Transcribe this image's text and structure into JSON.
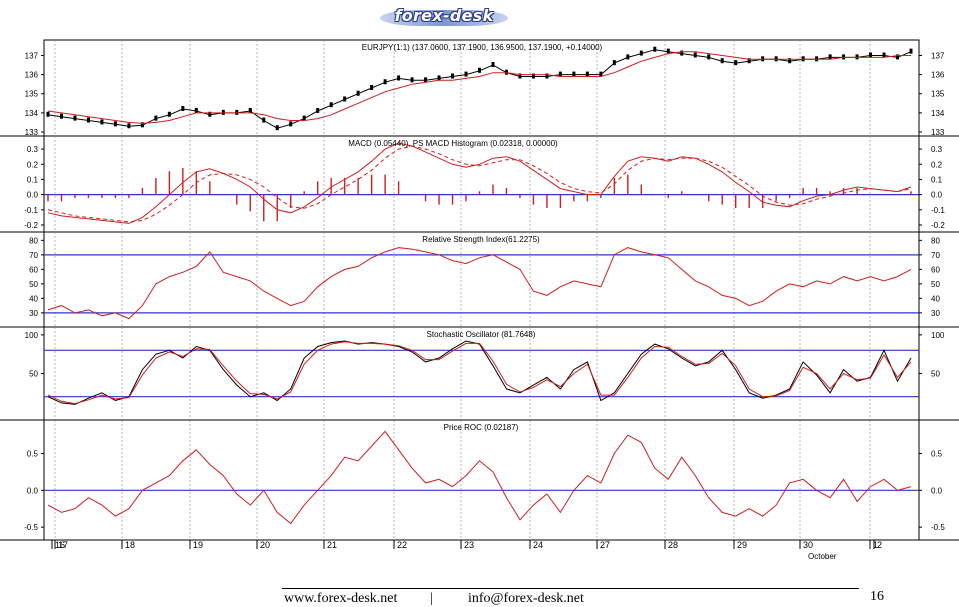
{
  "header": {
    "logo_text": "forex-desk"
  },
  "footer": {
    "website": "www.forex-desk.net",
    "separator": "|",
    "email": "info@forex-desk.net",
    "page_number": "16"
  },
  "colors": {
    "price": "#000000",
    "ma": "#cc1f1f",
    "indicator": "#cc1f1f",
    "reference": "#3333cc",
    "grid": "#888888"
  },
  "chart_data": {
    "x_axis": {
      "date_labels": [
        "16",
        "17",
        "18",
        "19",
        "20",
        "21",
        "22",
        "23",
        "24",
        "27",
        "28",
        "29",
        "30",
        "1",
        "2"
      ],
      "month_label": "October",
      "month_label_under": "1"
    },
    "panels": [
      {
        "type": "line",
        "name": "price",
        "title": "EURJPY(1:1) (137.0600, 137.1900, 136.9500, 137.1900, +0.14000)",
        "ylim": [
          133,
          137.6
        ],
        "yticks": [
          "137",
          "136",
          "135",
          "134",
          "133"
        ],
        "grid": true,
        "series": [
          {
            "style": "price",
            "values": [
              133.9,
              133.8,
              133.7,
              133.6,
              133.5,
              133.4,
              133.3,
              133.35,
              133.7,
              133.9,
              134.2,
              134.1,
              133.9,
              134.0,
              134.0,
              134.1,
              133.6,
              133.2,
              133.4,
              133.7,
              134.1,
              134.4,
              134.7,
              135.0,
              135.3,
              135.6,
              135.8,
              135.7,
              135.7,
              135.8,
              135.9,
              136.0,
              136.2,
              136.5,
              136.1,
              135.9,
              135.9,
              135.9,
              136.0,
              136.0,
              136.0,
              136.0,
              136.6,
              136.9,
              137.1,
              137.3,
              137.2,
              137.1,
              137.0,
              136.9,
              136.7,
              136.6,
              136.7,
              136.8,
              136.8,
              136.7,
              136.8,
              136.8,
              136.9,
              136.9,
              136.9,
              137.0,
              137.0,
              136.9,
              137.2
            ]
          },
          {
            "style": "ma",
            "values": [
              134.1,
              134.0,
              133.9,
              133.8,
              133.7,
              133.6,
              133.5,
              133.45,
              133.5,
              133.6,
              133.8,
              134.0,
              134.0,
              134.0,
              134.0,
              134.0,
              133.9,
              133.7,
              133.6,
              133.6,
              133.7,
              133.9,
              134.2,
              134.5,
              134.8,
              135.1,
              135.3,
              135.5,
              135.6,
              135.7,
              135.7,
              135.8,
              135.9,
              136.1,
              136.1,
              136.0,
              136.0,
              136.0,
              135.9,
              135.9,
              135.9,
              135.9,
              136.1,
              136.4,
              136.7,
              136.9,
              137.1,
              137.2,
              137.2,
              137.1,
              137.0,
              136.9,
              136.8,
              136.8,
              136.8,
              136.8,
              136.8,
              136.8,
              136.8,
              136.9,
              136.9,
              136.9,
              136.9,
              137.0,
              137.0
            ]
          }
        ]
      },
      {
        "type": "line",
        "name": "macd",
        "title": "MACD (0.05440), PS MACD Histogram (0.02318, 0.00000)",
        "ylim": [
          -0.22,
          0.36
        ],
        "yticks": [
          "0.3",
          "0.2",
          "0.1",
          "0.0",
          "-0.1",
          "-0.2"
        ],
        "reference": [
          0
        ],
        "grid": true,
        "series": [
          {
            "style": "indicator",
            "values": [
              -0.12,
              -0.14,
              -0.15,
              -0.16,
              -0.17,
              -0.18,
              -0.19,
              -0.15,
              -0.08,
              0.0,
              0.08,
              0.15,
              0.17,
              0.14,
              0.1,
              0.05,
              -0.03,
              -0.1,
              -0.12,
              -0.08,
              -0.02,
              0.05,
              0.1,
              0.15,
              0.22,
              0.3,
              0.34,
              0.32,
              0.28,
              0.24,
              0.2,
              0.18,
              0.2,
              0.24,
              0.25,
              0.22,
              0.16,
              0.1,
              0.04,
              0.02,
              0.0,
              0.0,
              0.12,
              0.22,
              0.25,
              0.24,
              0.22,
              0.25,
              0.24,
              0.2,
              0.15,
              0.08,
              0.02,
              -0.05,
              -0.07,
              -0.08,
              -0.04,
              -0.01,
              0.0,
              0.03,
              0.05,
              0.04,
              0.03,
              0.02,
              0.05
            ]
          },
          {
            "style": "dashed",
            "values": [
              -0.1,
              -0.12,
              -0.14,
              -0.15,
              -0.16,
              -0.17,
              -0.18,
              -0.17,
              -0.13,
              -0.07,
              0.0,
              0.08,
              0.13,
              0.14,
              0.13,
              0.1,
              0.05,
              -0.02,
              -0.08,
              -0.09,
              -0.06,
              0.0,
              0.05,
              0.1,
              0.16,
              0.24,
              0.3,
              0.32,
              0.3,
              0.27,
              0.23,
              0.2,
              0.19,
              0.21,
              0.23,
              0.23,
              0.19,
              0.14,
              0.08,
              0.04,
              0.02,
              0.01,
              0.07,
              0.16,
              0.22,
              0.24,
              0.23,
              0.24,
              0.24,
              0.22,
              0.18,
              0.12,
              0.06,
              -0.01,
              -0.05,
              -0.07,
              -0.06,
              -0.03,
              -0.01,
              0.01,
              0.03,
              0.04,
              0.03,
              0.02,
              0.04
            ]
          }
        ]
      },
      {
        "type": "line",
        "name": "rsi",
        "title": "Relative Strength Index(61.2275)",
        "ylim": [
          23,
          83
        ],
        "yticks": [
          "80",
          "70",
          "60",
          "50",
          "40",
          "30"
        ],
        "reference": [
          70,
          30
        ],
        "grid": true,
        "series": [
          {
            "style": "indicator",
            "values": [
              32,
              35,
              30,
              32,
              28,
              30,
              26,
              35,
              50,
              55,
              58,
              62,
              72,
              58,
              55,
              52,
              45,
              40,
              35,
              38,
              48,
              55,
              60,
              62,
              68,
              72,
              75,
              74,
              72,
              70,
              66,
              64,
              68,
              70,
              65,
              60,
              45,
              42,
              48,
              52,
              50,
              48,
              70,
              75,
              72,
              70,
              68,
              60,
              52,
              48,
              42,
              40,
              35,
              38,
              45,
              50,
              48,
              52,
              50,
              55,
              52,
              55,
              52,
              55,
              60
            ]
          }
        ]
      },
      {
        "type": "line",
        "name": "stochastic",
        "title": "Stochastic Oscillator (81.7648)",
        "ylim": [
          -5,
          105
        ],
        "yticks": [
          "100",
          "50"
        ],
        "reference": [
          80,
          20
        ],
        "grid": true,
        "series": [
          {
            "style": "price",
            "values": [
              20,
              12,
              10,
              18,
              25,
              15,
              20,
              55,
              75,
              80,
              70,
              85,
              80,
              55,
              35,
              20,
              25,
              15,
              30,
              70,
              85,
              90,
              92,
              88,
              90,
              88,
              85,
              78,
              65,
              70,
              82,
              92,
              88,
              60,
              30,
              25,
              35,
              45,
              30,
              55,
              65,
              15,
              25,
              50,
              75,
              88,
              82,
              70,
              60,
              65,
              80,
              55,
              25,
              18,
              22,
              30,
              65,
              48,
              25,
              55,
              40,
              45,
              80,
              40,
              70
            ]
          },
          {
            "style": "ma",
            "values": [
              22,
              14,
              11,
              16,
              22,
              17,
              19,
              48,
              70,
              78,
              72,
              82,
              81,
              60,
              40,
              24,
              23,
              17,
              26,
              62,
              80,
              88,
              91,
              89,
              89,
              88,
              86,
              80,
              68,
              68,
              79,
              89,
              89,
              66,
              36,
              26,
              32,
              42,
              33,
              50,
              62,
              22,
              22,
              45,
              70,
              85,
              84,
              72,
              62,
              63,
              76,
              60,
              30,
              20,
              21,
              28,
              58,
              50,
              30,
              50,
              42,
              44,
              74,
              45,
              65
            ]
          }
        ]
      },
      {
        "type": "line",
        "name": "roc",
        "title": "Price ROC (0.02187)",
        "ylim": [
          -0.62,
          0.9
        ],
        "yticks": [
          "0.5",
          "0.0",
          "-0.5"
        ],
        "reference": [
          0
        ],
        "grid": true,
        "series": [
          {
            "style": "indicator",
            "values": [
              -0.2,
              -0.3,
              -0.25,
              -0.1,
              -0.2,
              -0.35,
              -0.25,
              0.0,
              0.1,
              0.2,
              0.4,
              0.55,
              0.35,
              0.2,
              -0.05,
              -0.2,
              0.0,
              -0.3,
              -0.45,
              -0.2,
              0.0,
              0.2,
              0.45,
              0.4,
              0.6,
              0.8,
              0.55,
              0.3,
              0.1,
              0.15,
              0.05,
              0.2,
              0.4,
              0.25,
              -0.1,
              -0.4,
              -0.2,
              -0.05,
              -0.3,
              0.0,
              0.2,
              0.1,
              0.5,
              0.75,
              0.65,
              0.3,
              0.15,
              0.45,
              0.2,
              -0.1,
              -0.3,
              -0.35,
              -0.25,
              -0.35,
              -0.2,
              0.1,
              0.15,
              0.0,
              -0.1,
              0.15,
              -0.15,
              0.05,
              0.15,
              0.0,
              0.05
            ]
          }
        ]
      }
    ]
  }
}
